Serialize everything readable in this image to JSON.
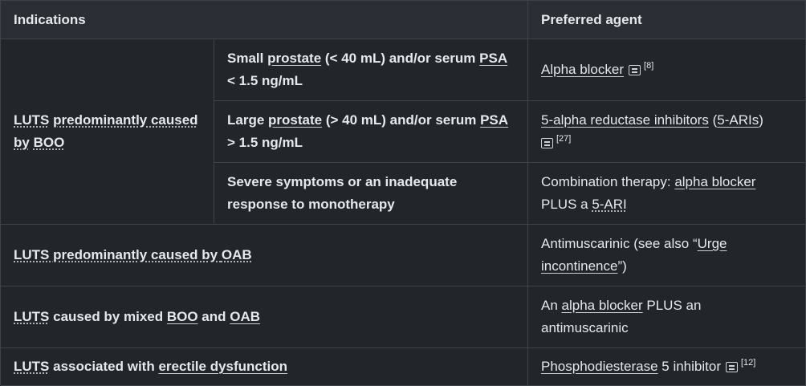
{
  "header": {
    "indications": "Indications",
    "preferred_agent": "Preferred agent"
  },
  "rows": {
    "boo": {
      "group_label_1": "LUTS",
      "group_label_2": "predominantly caused",
      "group_label_3": "by",
      "group_label_4": "BOO",
      "sub1": {
        "c1": "Small ",
        "c2": "prostate",
        "c3": " (< 40 mL) and/or serum ",
        "c4": "PSA",
        "c5": "< 1.5 ng/mL",
        "agent": "Alpha blocker",
        "ref": "[8]"
      },
      "sub2": {
        "c1": "Large ",
        "c2": "prostate",
        "c3": " (> 40 mL) and/or serum ",
        "c4": "PSA",
        "c5": "> 1.5 ng/mL",
        "agent1": "5-alpha reductase inhibitors",
        "agent2": " (",
        "agent3": "5-ARIs",
        "agent4": ")",
        "ref": "[27]"
      },
      "sub3": {
        "c1": "Severe symptoms or an inadequate",
        "c2": "response to monotherapy",
        "a1": "Combination therapy: ",
        "a2": "alpha blocker",
        "a3": "PLUS a ",
        "a4": "5-ARI"
      }
    },
    "oab": {
      "l1": "LUTS",
      "l2": " predominantly caused by ",
      "l3": "OAB",
      "a1": "Antimuscarinic (see also “",
      "a2": "Urge",
      "a3": "incontinence",
      "a4": "”)"
    },
    "mixed": {
      "l1": "LUTS",
      "l2": " caused by mixed ",
      "l3": "BOO",
      "l4": " and ",
      "l5": "OAB",
      "a1": "An ",
      "a2": "alpha blocker",
      "a3": " PLUS an",
      "a4": "antimuscarinic"
    },
    "ed": {
      "l1": "LUTS",
      "l2": " associated with ",
      "l3": "erectile dysfunction",
      "a1": "Phosphodiesterase",
      "a2": " 5 inhibitor",
      "ref": "[12]"
    }
  },
  "icons": {
    "note": "note-icon"
  },
  "colors": {
    "background": "#22252a",
    "header": "#2b2f35",
    "border": "#3e434a",
    "text": "#e6e8eb"
  }
}
